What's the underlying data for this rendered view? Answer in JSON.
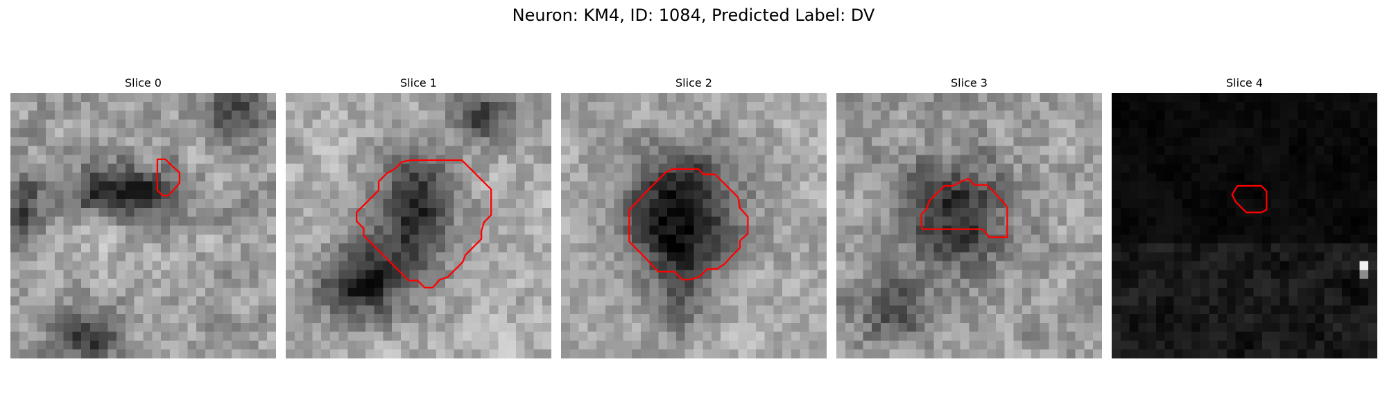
{
  "figure": {
    "suptitle": "Neuron: KM4, ID: 1084, Predicted Label: DV",
    "outline_color": "#ff0000",
    "colormap": "grayscale"
  },
  "panels": [
    {
      "title": "Slice 0"
    },
    {
      "title": "Slice 1"
    },
    {
      "title": "Slice 2"
    },
    {
      "title": "Slice 3"
    },
    {
      "title": "Slice 4"
    }
  ]
}
